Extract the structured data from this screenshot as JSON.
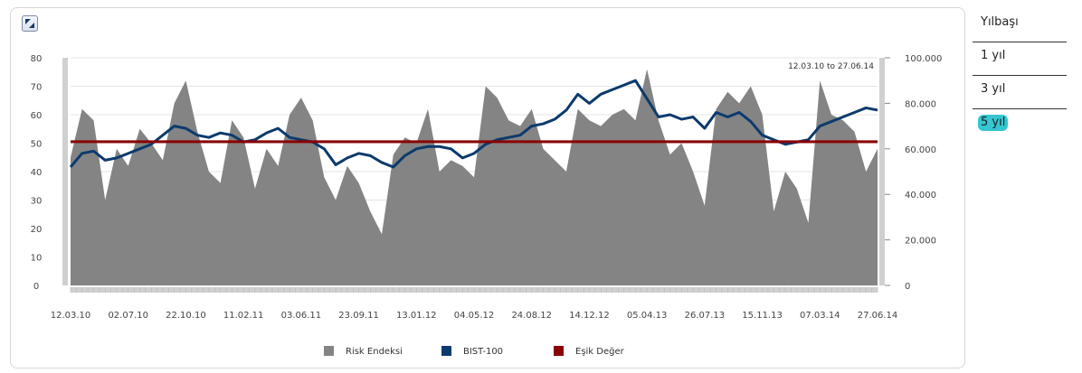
{
  "colors": {
    "risk_area": "#848484",
    "bist_line": "#0c3a6d",
    "threshold": "#8b0000",
    "active_pill": "#35c6cf"
  },
  "resize_icon": "expand-arrows-icon",
  "side_menu": {
    "items": [
      {
        "label": "Yılbaşı",
        "active": false
      },
      {
        "label": "1 yıl",
        "active": false
      },
      {
        "label": "3 yıl",
        "active": false
      },
      {
        "label": "5 yıl",
        "active": true
      }
    ]
  },
  "chart_data": {
    "type": "area",
    "range_label": "12.03.10 to 27.06.14",
    "x_tick_labels": [
      "12.03.10",
      "02.07.10",
      "22.10.10",
      "11.02.11",
      "03.06.11",
      "23.09.11",
      "13.01.12",
      "04.05.12",
      "24.08.12",
      "14.12.12",
      "05.04.13",
      "26.07.13",
      "15.11.13",
      "07.03.14",
      "27.06.14"
    ],
    "left_axis": {
      "ticks": [
        "0",
        "10",
        "20",
        "30",
        "40",
        "50",
        "60",
        "70",
        "80"
      ],
      "ylim": [
        0,
        80
      ]
    },
    "right_axis": {
      "ticks": [
        "0",
        "20.000",
        "40.000",
        "60.000",
        "80.000",
        "100.000"
      ],
      "ylim": [
        0,
        100000
      ]
    },
    "legend": [
      {
        "name": "Risk Endeksi",
        "color": "#848484"
      },
      {
        "name": "BIST-100",
        "color": "#0c3a6d"
      },
      {
        "name": "Eşik Değer",
        "color": "#8b0000"
      }
    ],
    "series": [
      {
        "name": "Risk Endeksi",
        "axis": "left",
        "style": "area",
        "x": [
          0,
          0.2,
          0.4,
          0.6,
          0.8,
          1.0,
          1.2,
          1.4,
          1.6,
          1.8,
          2.0,
          2.2,
          2.4,
          2.6,
          2.8,
          3.0,
          3.2,
          3.4,
          3.6,
          3.8,
          4.0,
          4.2,
          4.4,
          4.6,
          4.8,
          5.0,
          5.2,
          5.4,
          5.6,
          5.8,
          6.0,
          6.2,
          6.4,
          6.6,
          6.8,
          7.0,
          7.2,
          7.4,
          7.6,
          7.8,
          8.0,
          8.2,
          8.4,
          8.6,
          8.8,
          9.0,
          9.2,
          9.4,
          9.6,
          9.8,
          10.0,
          10.2,
          10.4,
          10.6,
          10.8,
          11.0,
          11.2,
          11.4,
          11.6,
          11.8,
          12.0,
          12.2,
          12.4,
          12.6,
          12.8,
          13.0,
          13.2,
          13.4,
          13.6,
          13.8,
          14.0
        ],
        "values": [
          45,
          62,
          58,
          30,
          48,
          42,
          55,
          50,
          44,
          64,
          72,
          54,
          40,
          36,
          58,
          52,
          34,
          48,
          42,
          60,
          66,
          58,
          38,
          30,
          42,
          36,
          26,
          18,
          46,
          52,
          50,
          62,
          40,
          44,
          42,
          38,
          70,
          66,
          58,
          56,
          62,
          48,
          44,
          40,
          62,
          58,
          56,
          60,
          62,
          58,
          76,
          58,
          46,
          50,
          40,
          28,
          62,
          68,
          64,
          70,
          60,
          26,
          40,
          34,
          22,
          72,
          60,
          58,
          54,
          40,
          48
        ]
      },
      {
        "name": "BIST-100",
        "axis": "right",
        "style": "line",
        "x": [
          0,
          0.2,
          0.4,
          0.6,
          0.8,
          1.0,
          1.2,
          1.4,
          1.6,
          1.8,
          2.0,
          2.2,
          2.4,
          2.6,
          2.8,
          3.0,
          3.2,
          3.4,
          3.6,
          3.8,
          4.0,
          4.2,
          4.4,
          4.6,
          4.8,
          5.0,
          5.2,
          5.4,
          5.6,
          5.8,
          6.0,
          6.2,
          6.4,
          6.6,
          6.8,
          7.0,
          7.2,
          7.4,
          7.6,
          7.8,
          8.0,
          8.2,
          8.4,
          8.6,
          8.8,
          9.0,
          9.2,
          9.4,
          9.6,
          9.8,
          10.0,
          10.2,
          10.4,
          10.6,
          10.8,
          11.0,
          11.2,
          11.4,
          11.6,
          11.8,
          12.0,
          12.2,
          12.4,
          12.6,
          12.8,
          13.0,
          13.2,
          13.4,
          13.6,
          13.8,
          14.0
        ],
        "values": [
          52000,
          58000,
          59000,
          55000,
          56000,
          58000,
          60000,
          62000,
          66000,
          70000,
          69000,
          66000,
          65000,
          67000,
          66000,
          63000,
          64000,
          67000,
          69000,
          65000,
          64000,
          63000,
          60000,
          53000,
          56000,
          58000,
          57000,
          54000,
          52000,
          57000,
          60000,
          61000,
          61000,
          60000,
          56000,
          58000,
          62000,
          64000,
          65000,
          66000,
          70000,
          71000,
          73000,
          77000,
          84000,
          80000,
          84000,
          86000,
          88000,
          90000,
          82000,
          74000,
          75000,
          73000,
          74000,
          69000,
          76000,
          74000,
          76000,
          72000,
          66000,
          64000,
          62000,
          63000,
          64000,
          70000,
          72000,
          74000,
          76000,
          78000,
          77000
        ]
      },
      {
        "name": "Eşik Değer",
        "axis": "left",
        "style": "line",
        "x": [
          0,
          14.0
        ],
        "values": [
          50.5,
          50.5
        ]
      }
    ]
  }
}
